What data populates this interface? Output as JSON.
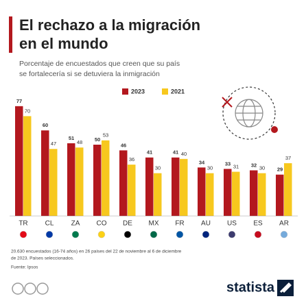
{
  "chart_data": {
    "type": "bar",
    "title": "El rechazo a la migración en el mundo",
    "subtitle": "Porcentaje de encuestados que creen que su país se fortalecería si se detuviera la inmigración",
    "categories": [
      "TR",
      "CL",
      "ZA",
      "CO",
      "DE",
      "MX",
      "FR",
      "AU",
      "US",
      "ES",
      "AR"
    ],
    "series": [
      {
        "name": "2023",
        "color": "#b3181e",
        "values": [
          77,
          60,
          51,
          50,
          46,
          41,
          41,
          34,
          33,
          32,
          29
        ]
      },
      {
        "name": "2021",
        "color": "#f7c81e",
        "values": [
          70,
          47,
          48,
          53,
          36,
          30,
          40,
          30,
          31,
          30,
          37
        ]
      }
    ],
    "note": "20.630 encuestados (16-74 años) en 26 países del 22 de noviembre al 6 de diciembre de 2023. Países seleccionados.",
    "source": "Fuente: Ipsos",
    "brand": "statista"
  }
}
